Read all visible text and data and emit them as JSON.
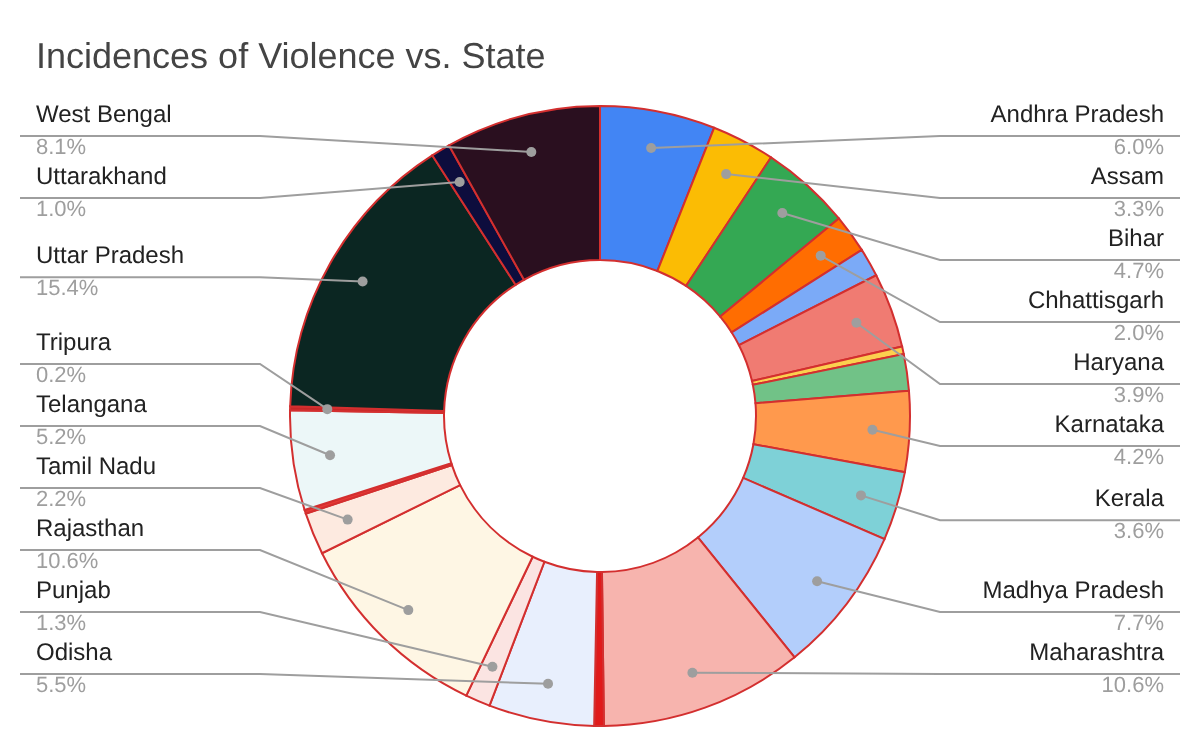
{
  "chart_data": {
    "type": "donut",
    "title": "Incidences of Violence vs. State",
    "categories": [
      "Andhra Pradesh",
      "Assam",
      "Bihar",
      "Chhattisgarh",
      null,
      "Haryana",
      null,
      null,
      "Karnataka",
      "Kerala",
      "Madhya Pradesh",
      "Maharashtra",
      null,
      "Odisha",
      "Punjab",
      "Rajasthan",
      "Tamil Nadu",
      null,
      "Telangana",
      "Tripura",
      "Uttar Pradesh",
      "Uttarakhand",
      "West Bengal"
    ],
    "values": [
      6.0,
      3.3,
      4.7,
      2.0,
      1.5,
      3.9,
      0.4,
      1.9,
      4.2,
      3.6,
      7.7,
      10.6,
      0.5,
      5.5,
      1.3,
      10.6,
      2.2,
      0.2,
      5.2,
      0.2,
      15.4,
      1.0,
      8.1
    ],
    "value_labels": [
      "6.0%",
      "3.3%",
      "4.7%",
      "2.0%",
      null,
      "3.9%",
      null,
      null,
      "4.2%",
      "3.6%",
      "7.7%",
      "10.6%",
      null,
      "5.5%",
      "1.3%",
      "10.6%",
      "2.2%",
      null,
      "5.2%",
      "0.2%",
      "15.4%",
      "1.0%",
      "8.1%"
    ],
    "colors": [
      "#4285f4",
      "#fbbc04",
      "#34a853",
      "#ff6d01",
      "#7baaf7",
      "#f07b72",
      "#fcd04f",
      "#71c287",
      "#ff994d",
      "#7ed1d7",
      "#b3cefb",
      "#f7b4ae",
      "#e01a1a",
      "#e8effd",
      "#fbe4e2",
      "#fef6e4",
      "#fdeae0",
      "#e53935",
      "#ecf7f8",
      "#c62828",
      "#0b2622",
      "#0d0d3d",
      "#2a0f1f"
    ]
  }
}
